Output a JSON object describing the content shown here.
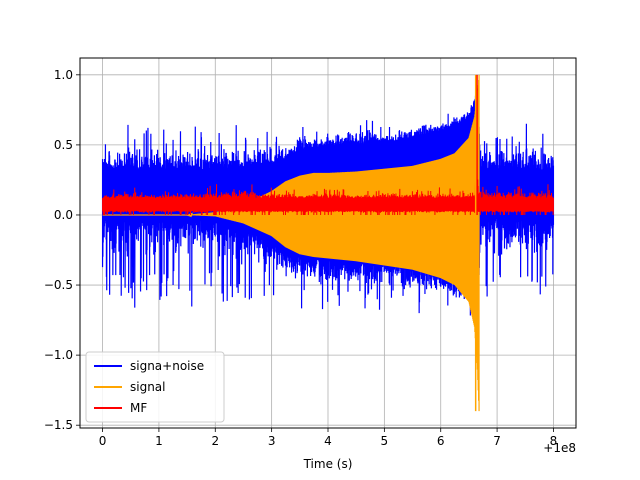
{
  "chart_data": {
    "type": "line",
    "title": "",
    "xlabel": "Time (s)",
    "ylabel": "",
    "x_offset_label": "+1e8",
    "xlim": [
      -0.4,
      8.4
    ],
    "ylim": [
      -1.52,
      1.12
    ],
    "x_ticks": [
      0,
      1,
      2,
      3,
      4,
      5,
      6,
      7,
      8
    ],
    "x_tick_labels": [
      "0",
      "1",
      "2",
      "3",
      "4",
      "5",
      "6",
      "7",
      "8"
    ],
    "y_ticks": [
      -1.5,
      -1.0,
      -0.5,
      0.0,
      0.5,
      1.0
    ],
    "y_tick_labels": [
      "−1.5",
      "−1.0",
      "−0.5",
      "0.0",
      "0.5",
      "1.0"
    ],
    "grid": true,
    "legend_position": "lower-left",
    "series": [
      {
        "name": "signa+noise",
        "color": "#0000ff",
        "x": [
          0,
          0.25,
          0.5,
          0.75,
          1.0,
          1.25,
          1.5,
          1.75,
          2.0,
          2.25,
          2.5,
          2.75,
          3.0,
          3.25,
          3.5,
          3.75,
          4.0,
          4.25,
          4.5,
          4.75,
          5.0,
          5.25,
          5.5,
          5.75,
          6.0,
          6.25,
          6.5,
          6.6,
          6.66,
          6.7,
          6.75,
          7.0,
          7.25,
          7.5,
          7.75,
          8.0
        ],
        "upper": [
          0.6,
          0.62,
          0.68,
          0.6,
          0.75,
          0.62,
          0.7,
          0.65,
          0.6,
          0.75,
          0.62,
          0.68,
          0.6,
          0.62,
          0.7,
          0.6,
          0.65,
          0.7,
          0.68,
          0.72,
          0.64,
          0.7,
          0.7,
          0.75,
          0.72,
          0.76,
          0.8,
          0.9,
          1.0,
          0.5,
          0.6,
          0.66,
          0.62,
          0.7,
          0.6,
          0.6
        ],
        "lower": [
          -0.6,
          -0.62,
          -0.7,
          -0.65,
          -0.72,
          -0.6,
          -0.68,
          -0.65,
          -0.62,
          -0.7,
          -0.66,
          -0.62,
          -0.64,
          -0.6,
          -0.7,
          -0.66,
          -0.68,
          -0.7,
          -0.64,
          -0.72,
          -0.66,
          -0.62,
          -0.72,
          -0.68,
          -0.7,
          -0.72,
          -0.78,
          -0.8,
          -0.78,
          -0.6,
          -0.62,
          -0.66,
          -0.64,
          -0.62,
          -0.6,
          -0.58
        ],
        "band_upper": [
          0.32,
          0.32,
          0.33,
          0.32,
          0.32,
          0.33,
          0.32,
          0.32,
          0.33,
          0.32,
          0.33,
          0.34,
          0.36,
          0.4,
          0.45,
          0.48,
          0.49,
          0.5,
          0.51,
          0.51,
          0.52,
          0.53,
          0.55,
          0.57,
          0.6,
          0.63,
          0.7,
          0.8,
          0.9,
          0.33,
          0.32,
          0.32,
          0.33,
          0.32,
          0.32,
          0.32
        ],
        "band_lower": [
          -0.02,
          -0.02,
          -0.02,
          -0.02,
          -0.02,
          -0.02,
          -0.02,
          -0.03,
          -0.04,
          -0.06,
          -0.09,
          -0.14,
          -0.2,
          -0.26,
          -0.3,
          -0.31,
          -0.31,
          -0.32,
          -0.33,
          -0.34,
          -0.35,
          -0.36,
          -0.38,
          -0.4,
          -0.43,
          -0.47,
          -0.55,
          -0.65,
          -0.8,
          -0.05,
          -0.02,
          -0.02,
          -0.02,
          -0.02,
          -0.02,
          -0.02
        ],
        "min_value": -0.8,
        "max_value": 1.0
      },
      {
        "name": "signal",
        "color": "#ffa500",
        "x": [
          0,
          0.5,
          1.0,
          1.5,
          2.0,
          2.5,
          3.0,
          3.25,
          3.5,
          3.75,
          4.0,
          4.5,
          5.0,
          5.5,
          6.0,
          6.25,
          6.5,
          6.6,
          6.65,
          6.68
        ],
        "upper": [
          0.0,
          0.0,
          0.0,
          0.0,
          0.02,
          0.07,
          0.17,
          0.24,
          0.28,
          0.3,
          0.3,
          0.31,
          0.33,
          0.35,
          0.4,
          0.44,
          0.55,
          0.7,
          0.85,
          1.0
        ],
        "lower": [
          0.0,
          0.0,
          0.0,
          0.0,
          -0.01,
          -0.06,
          -0.15,
          -0.23,
          -0.28,
          -0.3,
          -0.31,
          -0.33,
          -0.36,
          -0.39,
          -0.45,
          -0.5,
          -0.62,
          -0.8,
          -1.1,
          -1.4
        ],
        "min_value": -1.4,
        "max_value": 1.0
      },
      {
        "name": "MF",
        "color": "#ff0000",
        "x": [
          0,
          0.5,
          1.0,
          1.5,
          2.0,
          2.5,
          3.0,
          3.5,
          4.0,
          4.5,
          5.0,
          5.5,
          6.0,
          6.5,
          6.6,
          6.62,
          6.64,
          6.68,
          7.0,
          7.5,
          8.0
        ],
        "upper": [
          0.18,
          0.2,
          0.17,
          0.2,
          0.22,
          0.24,
          0.2,
          0.18,
          0.2,
          0.17,
          0.2,
          0.19,
          0.2,
          0.18,
          0.2,
          1.0,
          1.0,
          0.22,
          0.22,
          0.22,
          0.22
        ],
        "lower": [
          0.0,
          0.0,
          0.0,
          0.0,
          0.0,
          0.0,
          0.0,
          0.0,
          0.0,
          0.0,
          0.0,
          0.0,
          0.0,
          0.0,
          0.0,
          0.0,
          0.0,
          0.0,
          0.0,
          0.0,
          0.0
        ],
        "band_upper": [
          0.12,
          0.12,
          0.12,
          0.12,
          0.12,
          0.12,
          0.12,
          0.12,
          0.12,
          0.12,
          0.12,
          0.12,
          0.12,
          0.12,
          0.12,
          0.12,
          0.12,
          0.12,
          0.12,
          0.12,
          0.12
        ],
        "band_lower": [
          0.03,
          0.03,
          0.03,
          0.03,
          0.03,
          0.03,
          0.03,
          0.03,
          0.03,
          0.03,
          0.03,
          0.03,
          0.03,
          0.03,
          0.03,
          0.03,
          0.03,
          0.03,
          0.03,
          0.03,
          0.03
        ],
        "min_value": 0.0,
        "max_value": 1.0
      }
    ]
  }
}
